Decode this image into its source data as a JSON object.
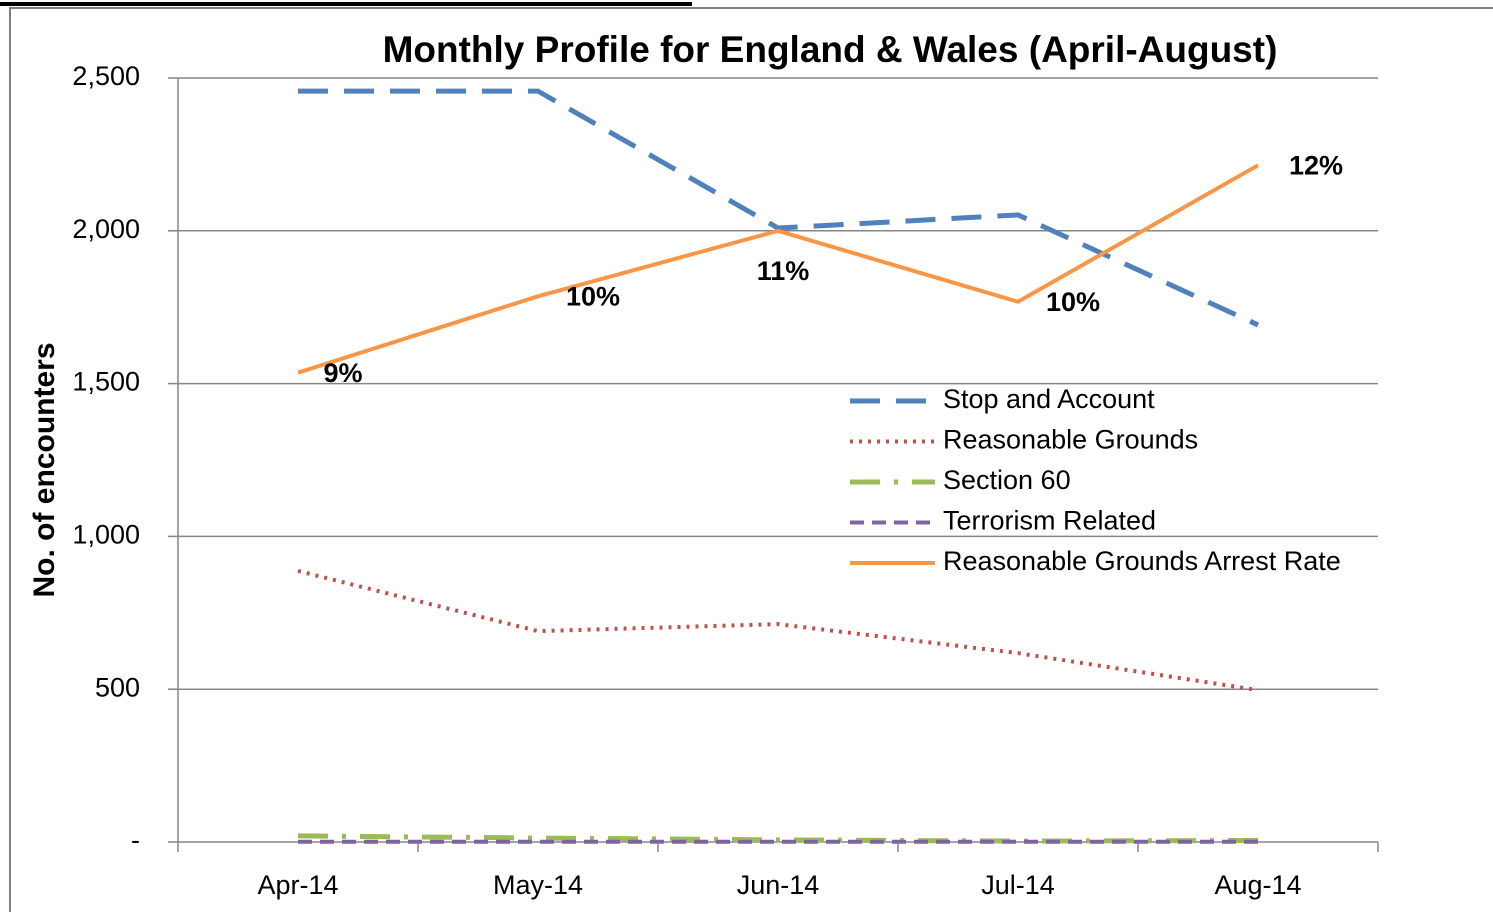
{
  "chart_data": {
    "type": "line",
    "title": "Monthly Profile for England & Wales (April-August)",
    "y_label": "No. of encounters",
    "categories": [
      "Apr-14",
      "May-14",
      "Jun-14",
      "Jul-14",
      "Aug-14"
    ],
    "ylim": [
      0,
      2500
    ],
    "yticks": [
      {
        "value": 0,
        "label": "-"
      },
      500,
      {
        "value": 1000,
        "label": "1,000"
      },
      {
        "value": 1500,
        "label": "1,500"
      },
      {
        "value": 2000,
        "label": "2,000"
      },
      {
        "value": 2500,
        "label": "2,500"
      }
    ],
    "y2lim": [
      0,
      14
    ],
    "grid": true,
    "legend": "right",
    "series": [
      {
        "name": "Stop and Account",
        "color": "#4f81bd",
        "line_style": "dashed",
        "values": [
          2457,
          2457,
          2009,
          2052,
          1692
        ]
      },
      {
        "name": "Reasonable Grounds",
        "color": "#c0504d",
        "line_style": "dotted",
        "values": [
          887,
          690,
          713,
          618,
          497
        ]
      },
      {
        "name": "Section 60",
        "color": "#9bbb59",
        "line_style": "dashdot",
        "values": [
          20,
          13,
          7,
          3,
          5
        ]
      },
      {
        "name": "Terrorism Related",
        "color": "#8064a2",
        "line_style": "dashed-short",
        "values": [
          1,
          1,
          1,
          1,
          1
        ]
      },
      {
        "name": "Reasonable Grounds Arrest Rate",
        "color": "#f79646",
        "line_style": "solid",
        "axis": "y2",
        "values": [
          8.6,
          10.0,
          11.2,
          9.9,
          12.4
        ],
        "value_labels": [
          "9%",
          "10%",
          "11%",
          "10%",
          "12%"
        ]
      }
    ]
  }
}
